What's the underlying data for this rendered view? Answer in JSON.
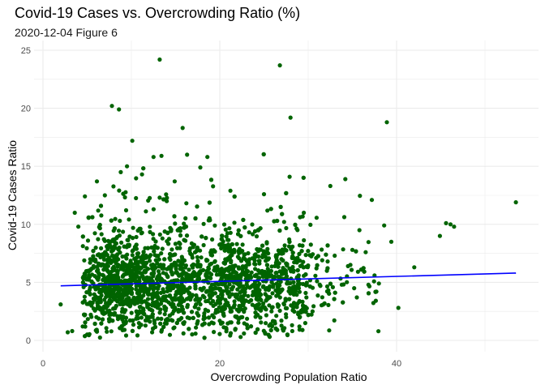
{
  "chart_data": {
    "type": "scatter",
    "title": "Covid-19 Cases vs. Overcrowding Ratio (%)",
    "subtitle": "2020-12-04 Figure 6",
    "xlabel": "Overcrowding Population Ratio",
    "ylabel": "Covid-19 Cases Ratio",
    "xlim": [
      0,
      55
    ],
    "ylim": [
      0,
      25
    ],
    "x_ticks": [
      "0",
      "20",
      "40"
    ],
    "y_ticks": [
      "0",
      "5",
      "10",
      "15",
      "20",
      "25"
    ],
    "grid": true,
    "point_color": "#006400",
    "trend_color": "#0000ff",
    "trend_line": {
      "x": [
        2,
        53.5
      ],
      "y": [
        4.7,
        5.8
      ]
    },
    "points": [
      [
        13.2,
        24.2
      ],
      [
        26.8,
        23.7
      ],
      [
        7.8,
        20.2
      ],
      [
        8.6,
        19.9
      ],
      [
        28.0,
        19.2
      ],
      [
        38.9,
        18.8
      ],
      [
        15.8,
        18.3
      ],
      [
        10.1,
        17.2
      ],
      [
        53.5,
        11.9
      ],
      [
        14.0,
        12.0
      ],
      [
        12.5,
        15.8
      ],
      [
        13.4,
        15.9
      ],
      [
        16.3,
        16.0
      ],
      [
        18.6,
        15.8
      ],
      [
        9.5,
        15.0
      ],
      [
        17.8,
        14.9
      ],
      [
        8.8,
        14.5
      ],
      [
        11.2,
        14.3
      ],
      [
        27.9,
        14.1
      ],
      [
        34.2,
        13.9
      ],
      [
        6.1,
        13.7
      ],
      [
        14.9,
        13.7
      ],
      [
        32.5,
        13.3
      ],
      [
        21.2,
        12.9
      ],
      [
        25.0,
        12.6
      ],
      [
        7.0,
        12.5
      ],
      [
        37.2,
        12.1
      ],
      [
        46.1,
        10.0
      ],
      [
        45.6,
        10.1
      ],
      [
        46.5,
        9.8
      ],
      [
        38.6,
        9.9
      ],
      [
        35.8,
        9.5
      ],
      [
        39.4,
        8.5
      ],
      [
        44.9,
        9.0
      ],
      [
        40.2,
        2.8
      ],
      [
        38.0,
        4.9
      ],
      [
        3.6,
        11.0
      ],
      [
        4.0,
        9.8
      ],
      [
        2.0,
        3.1
      ],
      [
        2.8,
        0.7
      ],
      [
        3.3,
        0.8
      ],
      [
        4.5,
        1.2
      ],
      [
        26.5,
        0.9
      ],
      [
        28.2,
        0.8
      ],
      [
        42.0,
        6.3
      ],
      [
        35.0,
        7.8
      ],
      [
        36.5,
        7.6
      ],
      [
        33.0,
        7.3
      ],
      [
        29.5,
        11.0
      ],
      [
        30.9,
        7.1
      ],
      [
        32.2,
        6.8
      ],
      [
        34.5,
        6.4
      ],
      [
        36.0,
        6.1
      ],
      [
        37.5,
        5.6
      ],
      [
        31.0,
        5.1
      ],
      [
        33.8,
        4.8
      ],
      [
        35.2,
        4.5
      ],
      [
        29.8,
        3.7
      ],
      [
        30.5,
        2.5
      ],
      [
        27.5,
        2.0
      ]
    ]
  }
}
